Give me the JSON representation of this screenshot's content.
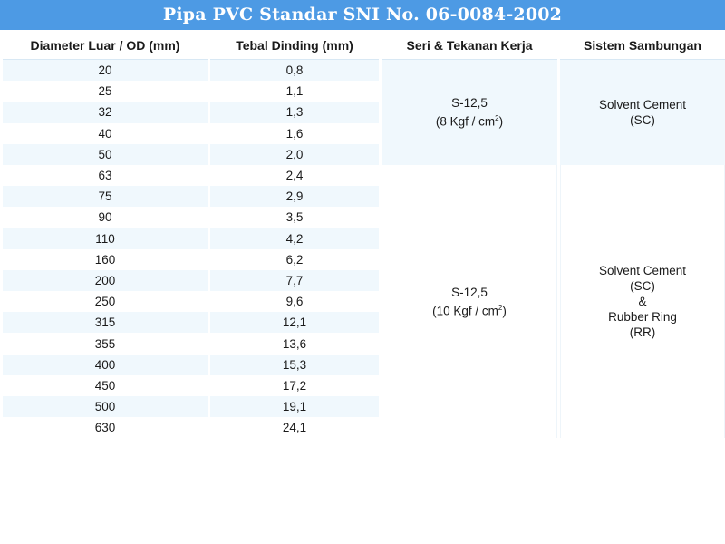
{
  "title": "Pipa PVC Standar SNI No. 06-0084-2002",
  "headers": [
    "Diameter Luar / OD (mm)",
    "Tebal Dinding (mm)",
    "Seri & Tekanan Kerja",
    "Sistem Sambungan"
  ],
  "rows": [
    {
      "od": "20",
      "wall": "0,8"
    },
    {
      "od": "25",
      "wall": "1,1"
    },
    {
      "od": "32",
      "wall": "1,3"
    },
    {
      "od": "40",
      "wall": "1,6"
    },
    {
      "od": "50",
      "wall": "2,0"
    },
    {
      "od": "63",
      "wall": "2,4"
    },
    {
      "od": "75",
      "wall": "2,9"
    },
    {
      "od": "90",
      "wall": "3,5"
    },
    {
      "od": "110",
      "wall": "4,2"
    },
    {
      "od": "160",
      "wall": "6,2"
    },
    {
      "od": "200",
      "wall": "7,7"
    },
    {
      "od": "250",
      "wall": "9,6"
    },
    {
      "od": "315",
      "wall": "12,1"
    },
    {
      "od": "355",
      "wall": "13,6"
    },
    {
      "od": "400",
      "wall": "15,3"
    },
    {
      "od": "450",
      "wall": "17,2"
    },
    {
      "od": "500",
      "wall": "19,1"
    },
    {
      "od": "630",
      "wall": "24,1"
    }
  ],
  "group_a": {
    "series": "S-12,5",
    "pressure": "(8 Kgf / cm",
    "pressure_sup": "2",
    "pressure_end": ")",
    "joint_1": "Solvent Cement",
    "joint_2": "(SC)"
  },
  "group_b": {
    "series": "S-12,5",
    "pressure": "(10 Kgf / cm",
    "pressure_sup": "2",
    "pressure_end": ")",
    "joint_1": "Solvent Cement",
    "joint_2": "(SC)",
    "joint_3": "&",
    "joint_4": "Rubber Ring",
    "joint_5": "(RR)"
  }
}
